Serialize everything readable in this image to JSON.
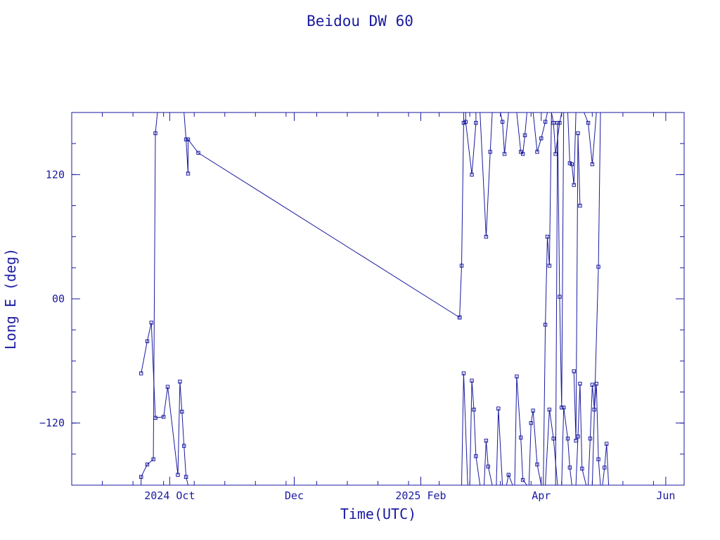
{
  "chart_data": {
    "type": "line",
    "title": "Beidou DW 60",
    "xlabel": "Time(UTC)",
    "ylabel": "Long E (deg)",
    "color": "#1a1aa0",
    "x_axis": {
      "range": [
        "2024-08-14",
        "2025-06-10"
      ],
      "ticks": [
        {
          "date": "2024-10-01",
          "label": "2024 Oct"
        },
        {
          "date": "2024-12-01",
          "label": "Dec"
        },
        {
          "date": "2025-02-01",
          "label": "2025 Feb"
        },
        {
          "date": "2025-04-01",
          "label": "Apr"
        },
        {
          "date": "2025-06-01",
          "label": "Jun"
        }
      ]
    },
    "y_axis": {
      "range": [
        -180,
        180
      ],
      "ticks": [
        {
          "value": 120,
          "label": "120"
        },
        {
          "value": 0,
          "label": "00"
        },
        {
          "value": -120,
          "label": "−120"
        }
      ]
    },
    "grid": false,
    "segments": [
      [
        [
          "2024-09-17",
          -180
        ],
        [
          "2024-09-17",
          -172
        ],
        [
          "2024-09-20",
          -160
        ],
        [
          "2024-09-23",
          -155
        ],
        [
          "2024-09-24",
          160
        ],
        [
          "2024-09-25",
          180
        ]
      ],
      [
        [
          "2024-10-08",
          180
        ],
        [
          "2024-10-09",
          154
        ],
        [
          "2024-10-10",
          121
        ],
        [
          "2024-10-10",
          154
        ],
        [
          "2024-10-15",
          141
        ],
        [
          "2025-02-20",
          -18
        ]
      ],
      [
        [
          "2025-02-20",
          -18
        ],
        [
          "2025-02-21",
          32
        ],
        [
          "2025-02-22",
          170
        ],
        [
          "2025-02-22",
          180
        ]
      ],
      [
        [
          "2025-02-23",
          180
        ],
        [
          "2025-02-23",
          171
        ],
        [
          "2025-02-26",
          120
        ],
        [
          "2025-02-28",
          170
        ],
        [
          "2025-02-28",
          180
        ]
      ],
      [
        [
          "2025-03-02",
          180
        ],
        [
          "2025-03-05",
          60
        ],
        [
          "2025-03-07",
          142
        ],
        [
          "2025-03-08",
          180
        ]
      ],
      [
        [
          "2025-03-12",
          180
        ],
        [
          "2025-03-13",
          171
        ],
        [
          "2025-03-14",
          140
        ],
        [
          "2025-03-16",
          180
        ]
      ],
      [
        [
          "2025-03-20",
          180
        ],
        [
          "2025-03-22",
          142
        ],
        [
          "2025-03-23",
          140
        ],
        [
          "2025-03-24",
          158
        ],
        [
          "2025-03-25",
          180
        ]
      ],
      [
        [
          "2025-03-28",
          180
        ],
        [
          "2025-03-30",
          142
        ],
        [
          "2025-04-01",
          155
        ],
        [
          "2025-04-03",
          171
        ],
        [
          "2025-04-04",
          180
        ]
      ],
      [
        [
          "2025-04-06",
          180
        ],
        [
          "2025-04-07",
          170
        ],
        [
          "2025-04-08",
          140
        ],
        [
          "2025-04-10",
          170
        ],
        [
          "2025-04-11",
          180
        ]
      ],
      [
        [
          "2025-04-14",
          180
        ],
        [
          "2025-04-15",
          131
        ],
        [
          "2025-04-16",
          130
        ],
        [
          "2025-04-17",
          110
        ],
        [
          "2025-04-18",
          180
        ]
      ],
      [
        [
          "2025-04-22",
          180
        ],
        [
          "2025-04-24",
          170
        ],
        [
          "2025-04-26",
          130
        ],
        [
          "2025-04-28",
          180
        ]
      ]
    ],
    "lower_segments": [
      [
        [
          "2024-09-17",
          -72
        ],
        [
          "2024-09-20",
          -41
        ],
        [
          "2024-09-22",
          -23
        ],
        [
          "2024-09-24",
          -115
        ],
        [
          "2024-09-28",
          -114
        ],
        [
          "2024-09-30",
          -85
        ],
        [
          "2024-10-05",
          -170
        ],
        [
          "2024-10-06",
          -80
        ],
        [
          "2024-10-07",
          -109
        ],
        [
          "2024-10-08",
          -142
        ],
        [
          "2024-10-09",
          -172
        ],
        [
          "2024-10-10",
          -180
        ]
      ],
      [
        [
          "2025-02-21",
          -180
        ],
        [
          "2025-02-22",
          -72
        ],
        [
          "2025-02-24",
          -180
        ]
      ],
      [
        [
          "2025-02-25",
          -180
        ],
        [
          "2025-02-26",
          -79
        ],
        [
          "2025-02-27",
          -107
        ],
        [
          "2025-02-28",
          -152
        ],
        [
          "2025-03-02",
          -180
        ]
      ],
      [
        [
          "2025-03-04",
          -180
        ],
        [
          "2025-03-05",
          -137
        ],
        [
          "2025-03-06",
          -162
        ],
        [
          "2025-03-08",
          -180
        ]
      ],
      [
        [
          "2025-03-10",
          -180
        ],
        [
          "2025-03-11",
          -106
        ],
        [
          "2025-03-13",
          -180
        ]
      ],
      [
        [
          "2025-03-15",
          -180
        ],
        [
          "2025-03-16",
          -170
        ],
        [
          "2025-03-18",
          -180
        ]
      ],
      [
        [
          "2025-03-19",
          -180
        ],
        [
          "2025-03-20",
          -75
        ],
        [
          "2025-03-22",
          -134
        ],
        [
          "2025-03-23",
          -175
        ],
        [
          "2025-03-25",
          -180
        ]
      ],
      [
        [
          "2025-03-26",
          -180
        ],
        [
          "2025-03-27",
          -120
        ],
        [
          "2025-03-28",
          -108
        ],
        [
          "2025-03-30",
          -160
        ],
        [
          "2025-04-01",
          -180
        ]
      ],
      [
        [
          "2025-04-03",
          -180
        ],
        [
          "2025-04-05",
          -107
        ],
        [
          "2025-04-07",
          -135
        ],
        [
          "2025-04-09",
          -180
        ]
      ],
      [
        [
          "2025-04-11",
          -180
        ],
        [
          "2025-04-12",
          -105
        ],
        [
          "2025-04-14",
          -135
        ],
        [
          "2025-04-15",
          -163
        ],
        [
          "2025-04-16",
          -180
        ]
      ],
      [
        [
          "2025-04-18",
          -180
        ],
        [
          "2025-04-19",
          -133
        ],
        [
          "2025-04-20",
          -82
        ],
        [
          "2025-04-21",
          -164
        ],
        [
          "2025-04-23",
          -180
        ]
      ],
      [
        [
          "2025-04-24",
          -180
        ],
        [
          "2025-04-25",
          -135
        ],
        [
          "2025-04-26",
          -83
        ],
        [
          "2025-04-27",
          -107
        ],
        [
          "2025-04-28",
          -82
        ],
        [
          "2025-04-29",
          -155
        ],
        [
          "2025-04-30",
          -180
        ]
      ],
      [
        [
          "2025-05-01",
          -180
        ],
        [
          "2025-05-02",
          -163
        ],
        [
          "2025-05-03",
          -140
        ],
        [
          "2025-05-04",
          -180
        ]
      ]
    ],
    "bridges": [
      [
        [
          "2025-04-17",
          -70
        ],
        [
          "2025-04-18",
          -137
        ],
        [
          "2025-04-19",
          160
        ],
        [
          "2025-04-20",
          90
        ]
      ],
      [
        [
          "2025-04-26",
          -180
        ],
        [
          "2025-04-29",
          31
        ],
        [
          "2025-04-30",
          180
        ]
      ],
      [
        [
          "2025-04-02",
          -180
        ],
        [
          "2025-04-03",
          -25
        ],
        [
          "2025-04-04",
          60
        ],
        [
          "2025-04-05",
          32
        ],
        [
          "2025-04-06",
          180
        ]
      ],
      [
        [
          "2025-04-08",
          -180
        ],
        [
          "2025-04-09",
          170
        ],
        [
          "2025-04-10",
          2
        ],
        [
          "2025-04-11",
          -105
        ],
        [
          "2025-04-12",
          180
        ]
      ]
    ]
  }
}
